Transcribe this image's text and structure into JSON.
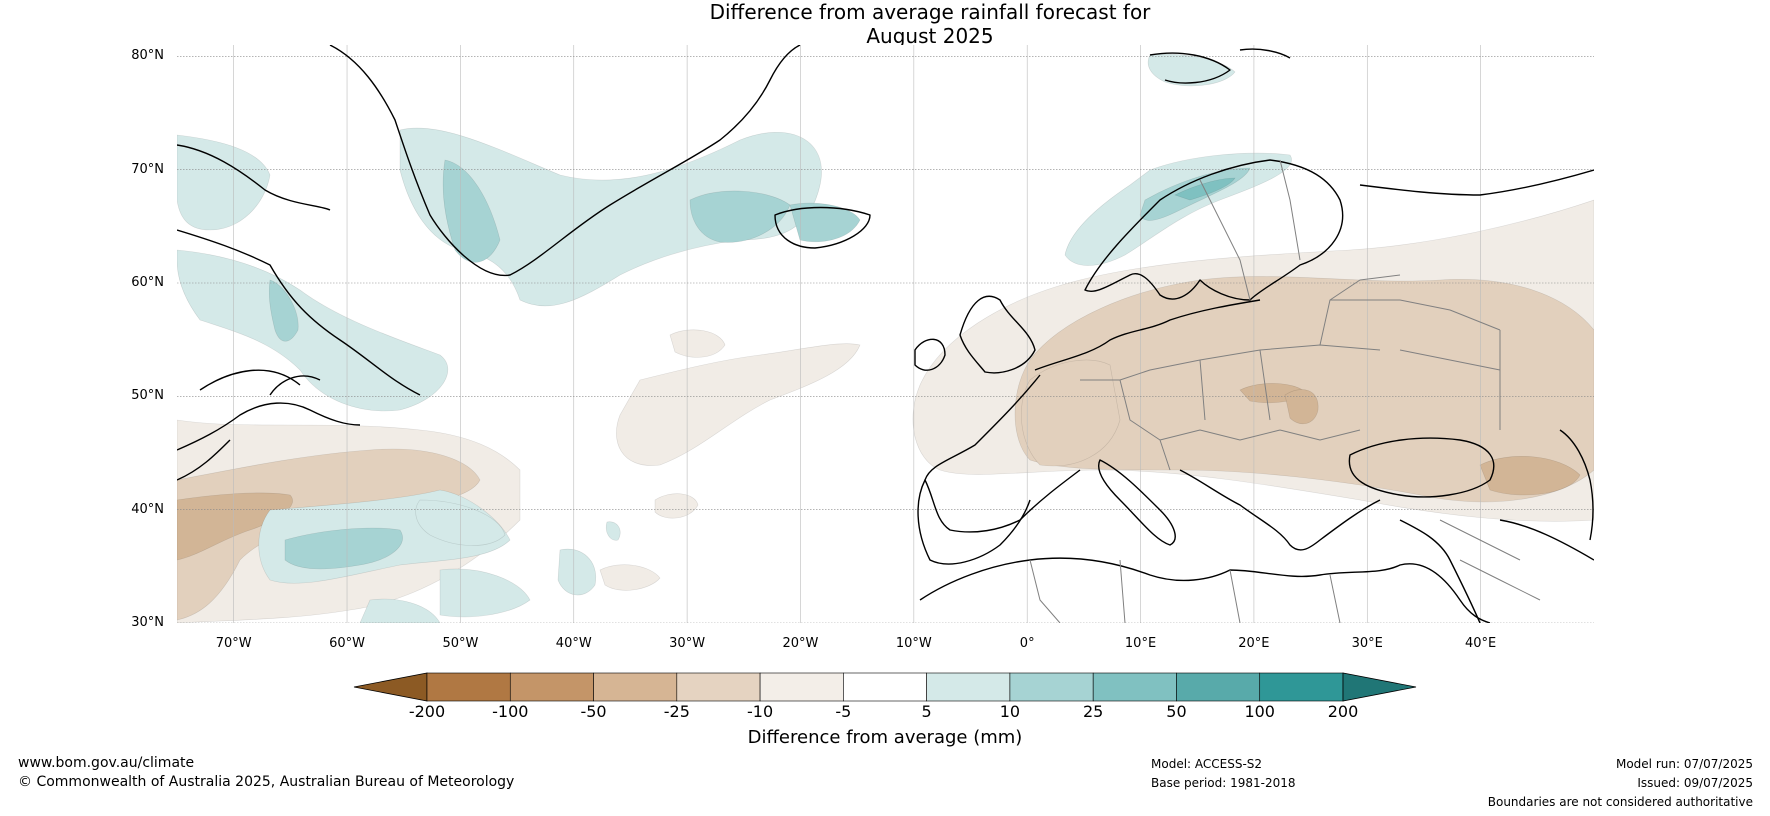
{
  "title": {
    "line1": "Difference from average rainfall forecast for",
    "line2": "August 2025"
  },
  "map": {
    "lat_labels": [
      "80°N",
      "70°N",
      "60°N",
      "50°N",
      "40°N",
      "30°N"
    ],
    "lon_labels": [
      "70°W",
      "60°W",
      "50°W",
      "40°W",
      "30°W",
      "20°W",
      "10°W",
      "0°",
      "10°E",
      "20°E",
      "30°E",
      "40°E"
    ],
    "extent": {
      "lon": [
        -75,
        50
      ],
      "lat": [
        30,
        81
      ]
    },
    "land_label": "",
    "colors": {
      "dry_light": "#f1ece6",
      "dry_mid": "#e2d0bd",
      "dry_strong": "#d2b596",
      "wet_light": "#d4e9e8",
      "wet_mid": "#a6d3d3",
      "wet_strong": "#7fc1c1",
      "coast": "#000000",
      "border": "#808080"
    }
  },
  "colorbar": {
    "ticks": [
      "-200",
      "-100",
      "-50",
      "-25",
      "-10",
      "-5",
      "5",
      "10",
      "25",
      "50",
      "100",
      "200"
    ],
    "colors": [
      "#8c5a24",
      "#b07843",
      "#c49568",
      "#d6b594",
      "#e5d3c1",
      "#f3eee8",
      "#ffffff",
      "#d4e9e8",
      "#a6d3d3",
      "#80c1c1",
      "#58aaaa",
      "#2f9797",
      "#207676"
    ],
    "label": "Difference from average (mm)"
  },
  "footer": {
    "website": "www.bom.gov.au/climate",
    "copyright": "© Commonwealth of Australia 2025, Australian Bureau of Meteorology",
    "model": "Model: ACCESS-S2",
    "base_period": "Base period: 1981-2018",
    "model_run": "Model run: 07/07/2025",
    "issued": "Issued: 09/07/2025",
    "disclaimer": "Boundaries are not considered authoritative"
  }
}
